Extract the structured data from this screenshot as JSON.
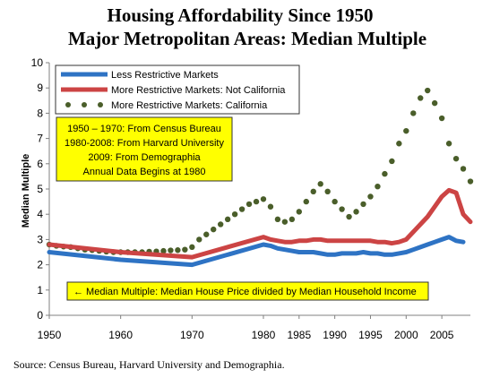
{
  "chart_data": {
    "type": "line",
    "title_lines": [
      "Housing Affordability Since 1950",
      "Major Metropolitan Areas: Median Multiple"
    ],
    "ylabel": "Median Multiple",
    "xlabel": "",
    "ylim": [
      0,
      10
    ],
    "yticks": [
      "0",
      "1",
      "2",
      "3",
      "4",
      "5",
      "6",
      "7",
      "8",
      "9",
      "10"
    ],
    "xlim": [
      1950,
      2009
    ],
    "xticks": [
      {
        "x": 1950,
        "label": "1950"
      },
      {
        "x": 1960,
        "label": "1960"
      },
      {
        "x": 1970,
        "label": "1970"
      },
      {
        "x": 1980,
        "label": "1980"
      },
      {
        "x": 1985,
        "label": "1985"
      },
      {
        "x": 1990,
        "label": "1990"
      },
      {
        "x": 1995,
        "label": "1995"
      },
      {
        "x": 2000,
        "label": "2000"
      },
      {
        "x": 2005,
        "label": "2005"
      }
    ],
    "grid": false,
    "legend_position": "top-left",
    "series": [
      {
        "name": "Less Restrictive Markets",
        "color": "#2e73c4",
        "style": "line",
        "points": [
          [
            1950,
            2.5
          ],
          [
            1960,
            2.2
          ],
          [
            1970,
            2.0
          ],
          [
            1980,
            2.8
          ],
          [
            1981,
            2.75
          ],
          [
            1982,
            2.65
          ],
          [
            1983,
            2.6
          ],
          [
            1984,
            2.55
          ],
          [
            1985,
            2.5
          ],
          [
            1986,
            2.5
          ],
          [
            1987,
            2.5
          ],
          [
            1988,
            2.45
          ],
          [
            1989,
            2.4
          ],
          [
            1990,
            2.4
          ],
          [
            1991,
            2.45
          ],
          [
            1992,
            2.45
          ],
          [
            1993,
            2.45
          ],
          [
            1994,
            2.5
          ],
          [
            1995,
            2.45
          ],
          [
            1996,
            2.45
          ],
          [
            1997,
            2.4
          ],
          [
            1998,
            2.4
          ],
          [
            1999,
            2.45
          ],
          [
            2000,
            2.5
          ],
          [
            2001,
            2.6
          ],
          [
            2002,
            2.7
          ],
          [
            2003,
            2.8
          ],
          [
            2004,
            2.9
          ],
          [
            2005,
            3.0
          ],
          [
            2006,
            3.1
          ],
          [
            2007,
            2.95
          ],
          [
            2008,
            2.9
          ]
        ]
      },
      {
        "name": "More Restrictive Markets: Not California",
        "color": "#cc4444",
        "style": "line",
        "points": [
          [
            1950,
            2.8
          ],
          [
            1960,
            2.5
          ],
          [
            1970,
            2.3
          ],
          [
            1980,
            3.1
          ],
          [
            1981,
            3.0
          ],
          [
            1982,
            2.95
          ],
          [
            1983,
            2.9
          ],
          [
            1984,
            2.9
          ],
          [
            1985,
            2.95
          ],
          [
            1986,
            2.95
          ],
          [
            1987,
            3.0
          ],
          [
            1988,
            3.0
          ],
          [
            1989,
            2.95
          ],
          [
            1990,
            2.95
          ],
          [
            1991,
            2.95
          ],
          [
            1992,
            2.95
          ],
          [
            1993,
            2.95
          ],
          [
            1994,
            2.95
          ],
          [
            1995,
            2.95
          ],
          [
            1996,
            2.9
          ],
          [
            1997,
            2.9
          ],
          [
            1998,
            2.85
          ],
          [
            1999,
            2.9
          ],
          [
            2000,
            3.0
          ],
          [
            2001,
            3.3
          ],
          [
            2002,
            3.6
          ],
          [
            2003,
            3.9
          ],
          [
            2004,
            4.3
          ],
          [
            2005,
            4.7
          ],
          [
            2006,
            4.95
          ],
          [
            2007,
            4.85
          ],
          [
            2008,
            4.0
          ],
          [
            2009,
            3.7
          ]
        ]
      },
      {
        "name": "More Restrictive Markets: California",
        "color": "#4a5e2a",
        "style": "dots",
        "points": [
          [
            1950,
            2.8
          ],
          [
            1951,
            2.75
          ],
          [
            1952,
            2.72
          ],
          [
            1953,
            2.7
          ],
          [
            1954,
            2.65
          ],
          [
            1955,
            2.6
          ],
          [
            1956,
            2.58
          ],
          [
            1957,
            2.55
          ],
          [
            1958,
            2.52
          ],
          [
            1959,
            2.5
          ],
          [
            1960,
            2.5
          ],
          [
            1961,
            2.5
          ],
          [
            1962,
            2.5
          ],
          [
            1963,
            2.5
          ],
          [
            1964,
            2.52
          ],
          [
            1965,
            2.53
          ],
          [
            1966,
            2.55
          ],
          [
            1967,
            2.57
          ],
          [
            1968,
            2.58
          ],
          [
            1969,
            2.6
          ],
          [
            1970,
            2.7
          ],
          [
            1971,
            3.0
          ],
          [
            1972,
            3.2
          ],
          [
            1973,
            3.4
          ],
          [
            1974,
            3.6
          ],
          [
            1975,
            3.8
          ],
          [
            1976,
            4.0
          ],
          [
            1977,
            4.2
          ],
          [
            1978,
            4.4
          ],
          [
            1979,
            4.5
          ],
          [
            1980,
            4.6
          ],
          [
            1981,
            4.3
          ],
          [
            1982,
            3.8
          ],
          [
            1983,
            3.7
          ],
          [
            1984,
            3.8
          ],
          [
            1985,
            4.1
          ],
          [
            1986,
            4.5
          ],
          [
            1987,
            4.9
          ],
          [
            1988,
            5.2
          ],
          [
            1989,
            4.9
          ],
          [
            1990,
            4.5
          ],
          [
            1991,
            4.2
          ],
          [
            1992,
            3.9
          ],
          [
            1993,
            4.1
          ],
          [
            1994,
            4.4
          ],
          [
            1995,
            4.7
          ],
          [
            1996,
            5.1
          ],
          [
            1997,
            5.6
          ],
          [
            1998,
            6.1
          ],
          [
            1999,
            6.8
          ],
          [
            2000,
            7.3
          ],
          [
            2001,
            8.0
          ],
          [
            2002,
            8.6
          ],
          [
            2003,
            8.9
          ],
          [
            2004,
            8.4
          ],
          [
            2005,
            7.8
          ],
          [
            2006,
            6.8
          ],
          [
            2007,
            6.2
          ],
          [
            2008,
            5.8
          ],
          [
            2009,
            5.3
          ]
        ]
      }
    ],
    "annotations": {
      "source_box": [
        "1950 – 1970: From Census Bureau",
        "1980-2008: From Harvard University",
        "2009: From Demographia",
        "Annual Data Begins at 1980"
      ],
      "definition": "← Median Multiple: Median House Price divided by Median Household Income"
    },
    "source_note": "Source: Census Bureau, Harvard University and Demographia.",
    "colors": {
      "annotation_fill": "#ffff00",
      "axis": "#808080"
    }
  }
}
